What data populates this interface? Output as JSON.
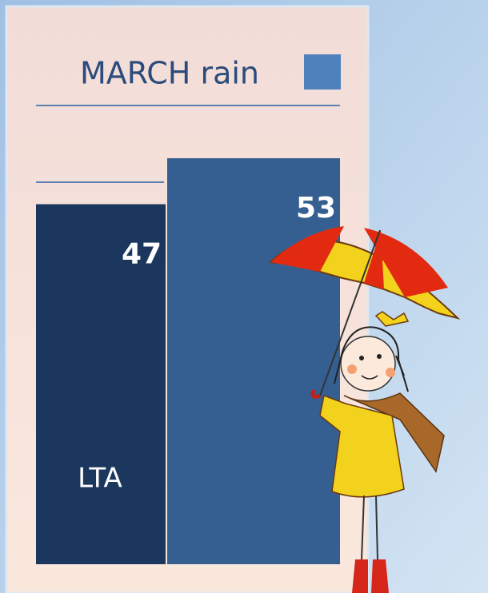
{
  "chart_data": {
    "type": "bar",
    "title": "MARCH rain",
    "categories": [
      "LTA",
      null
    ],
    "values": [
      47,
      53
    ],
    "colors": [
      "#1c375e",
      "#355f91"
    ],
    "legend_color": "#4f81bd"
  }
}
